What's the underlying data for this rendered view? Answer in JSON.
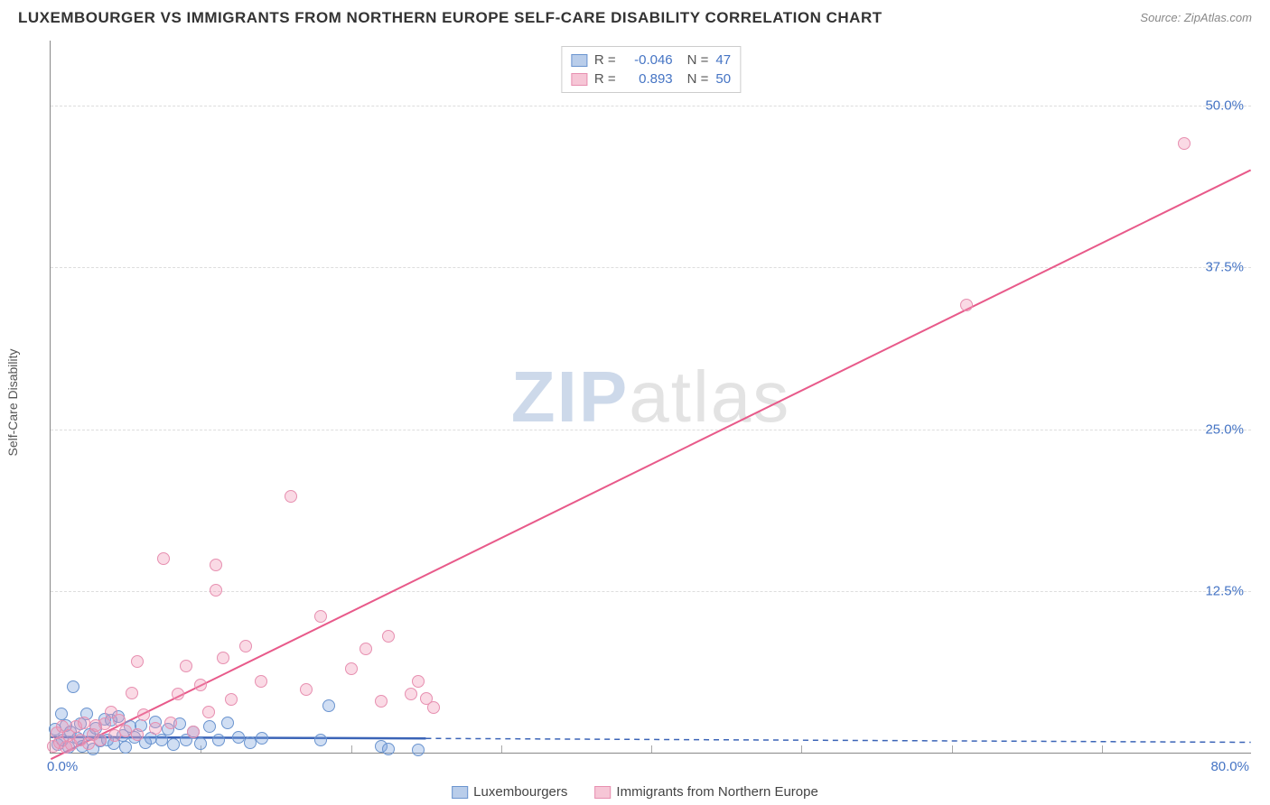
{
  "title": "LUXEMBOURGER VS IMMIGRANTS FROM NORTHERN EUROPE SELF-CARE DISABILITY CORRELATION CHART",
  "source_label": "Source:",
  "source_name": "ZipAtlas.com",
  "ylabel": "Self-Care Disability",
  "watermark_a": "ZIP",
  "watermark_b": "atlas",
  "chart": {
    "type": "scatter",
    "xlim": [
      0,
      80
    ],
    "ylim": [
      0,
      55
    ],
    "x_tick_start": "0.0%",
    "x_tick_end": "80.0%",
    "x_minor_step": 10,
    "y_ticks": [
      12.5,
      25.0,
      37.5,
      50.0
    ],
    "y_tick_labels": [
      "12.5%",
      "25.0%",
      "37.5%",
      "50.0%"
    ],
    "background_color": "#ffffff",
    "grid_color": "#dddddd",
    "axis_color": "#888888",
    "tick_label_color": "#4574c4",
    "series": [
      {
        "name": "Luxembourgers",
        "marker_fill": "rgba(120,160,220,0.35)",
        "marker_stroke": "#6a94cf",
        "swatch_fill": "#b9cdea",
        "swatch_stroke": "#6a94cf",
        "marker_radius": 7,
        "line_color": "#3b64b7",
        "line_width": 2.5,
        "dash_color": "#3b64b7",
        "R": "-0.046",
        "N": "47",
        "trend": {
          "x1": 0,
          "y1": 1.2,
          "x_solid_end": 25,
          "y_solid_end": 1.1,
          "x2": 80,
          "y2": 0.8
        },
        "points": [
          [
            0.3,
            1.8
          ],
          [
            0.5,
            0.6
          ],
          [
            0.7,
            3.0
          ],
          [
            0.8,
            1.0
          ],
          [
            1.0,
            2.1
          ],
          [
            1.2,
            0.4
          ],
          [
            1.3,
            1.6
          ],
          [
            1.5,
            5.1
          ],
          [
            1.8,
            1.1
          ],
          [
            2.0,
            2.2
          ],
          [
            2.1,
            0.5
          ],
          [
            2.4,
            3.0
          ],
          [
            2.6,
            1.4
          ],
          [
            2.8,
            0.3
          ],
          [
            3.0,
            1.9
          ],
          [
            3.3,
            0.9
          ],
          [
            3.6,
            2.6
          ],
          [
            3.8,
            1.0
          ],
          [
            4.0,
            2.5
          ],
          [
            4.2,
            0.7
          ],
          [
            4.5,
            2.8
          ],
          [
            4.8,
            1.3
          ],
          [
            5.0,
            0.4
          ],
          [
            5.3,
            2.0
          ],
          [
            5.6,
            1.2
          ],
          [
            6.0,
            2.1
          ],
          [
            6.3,
            0.8
          ],
          [
            6.7,
            1.1
          ],
          [
            7.0,
            2.4
          ],
          [
            7.4,
            1.0
          ],
          [
            7.8,
            1.8
          ],
          [
            8.2,
            0.6
          ],
          [
            8.6,
            2.2
          ],
          [
            9.0,
            1.0
          ],
          [
            9.5,
            1.6
          ],
          [
            10.0,
            0.7
          ],
          [
            10.6,
            2.0
          ],
          [
            11.2,
            1.0
          ],
          [
            11.8,
            2.3
          ],
          [
            12.5,
            1.2
          ],
          [
            13.3,
            0.8
          ],
          [
            14.1,
            1.1
          ],
          [
            18.0,
            1.0
          ],
          [
            18.5,
            3.6
          ],
          [
            22.0,
            0.5
          ],
          [
            22.5,
            0.3
          ],
          [
            24.5,
            0.2
          ]
        ]
      },
      {
        "name": "Immigrants from Northern Europe",
        "marker_fill": "rgba(240,150,180,0.35)",
        "marker_stroke": "#e78fb0",
        "swatch_fill": "#f6c6d6",
        "swatch_stroke": "#e78fb0",
        "marker_radius": 7,
        "line_color": "#e85a8a",
        "line_width": 2,
        "R": "0.893",
        "N": "50",
        "trend": {
          "x1": 0,
          "y1": -0.5,
          "x2": 80,
          "y2": 45
        },
        "points": [
          [
            0.2,
            0.5
          ],
          [
            0.4,
            1.5
          ],
          [
            0.6,
            0.8
          ],
          [
            0.8,
            2.0
          ],
          [
            1.0,
            0.4
          ],
          [
            1.2,
            1.3
          ],
          [
            1.4,
            0.6
          ],
          [
            1.7,
            2.0
          ],
          [
            2.0,
            1.0
          ],
          [
            2.2,
            2.3
          ],
          [
            2.5,
            0.7
          ],
          [
            2.8,
            1.4
          ],
          [
            3.0,
            2.1
          ],
          [
            3.3,
            1.0
          ],
          [
            3.6,
            2.2
          ],
          [
            4.0,
            3.1
          ],
          [
            4.3,
            1.3
          ],
          [
            4.6,
            2.5
          ],
          [
            5.0,
            1.7
          ],
          [
            5.4,
            4.6
          ],
          [
            5.8,
            1.4
          ],
          [
            6.2,
            2.9
          ],
          [
            5.8,
            7.0
          ],
          [
            7.0,
            1.9
          ],
          [
            7.5,
            15.0
          ],
          [
            8.0,
            2.3
          ],
          [
            8.5,
            4.5
          ],
          [
            9.0,
            6.7
          ],
          [
            9.5,
            1.6
          ],
          [
            10.0,
            5.2
          ],
          [
            10.5,
            3.1
          ],
          [
            11.0,
            12.5
          ],
          [
            11.5,
            7.3
          ],
          [
            12.0,
            4.1
          ],
          [
            13.0,
            8.2
          ],
          [
            14.0,
            5.5
          ],
          [
            11.0,
            14.5
          ],
          [
            16.0,
            19.8
          ],
          [
            17.0,
            4.9
          ],
          [
            18.0,
            10.5
          ],
          [
            20.0,
            6.5
          ],
          [
            21.0,
            8.0
          ],
          [
            22.0,
            4.0
          ],
          [
            22.5,
            9.0
          ],
          [
            24.0,
            4.5
          ],
          [
            24.5,
            5.5
          ],
          [
            25.0,
            4.2
          ],
          [
            25.5,
            3.5
          ],
          [
            61.0,
            34.5
          ],
          [
            75.5,
            47.0
          ]
        ]
      }
    ]
  },
  "legend_top_labels": {
    "R": "R =",
    "N": "N ="
  },
  "legend_bottom": [
    "Luxembourgers",
    "Immigrants from Northern Europe"
  ]
}
